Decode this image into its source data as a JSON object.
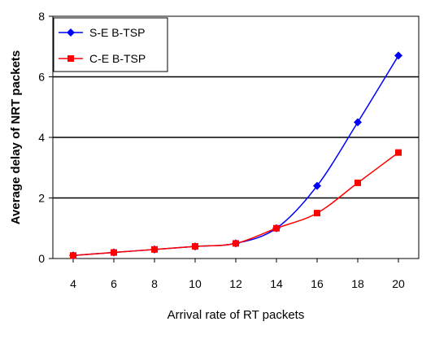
{
  "chart_data": {
    "type": "line",
    "x": [
      4,
      6,
      8,
      10,
      12,
      14,
      16,
      18,
      20
    ],
    "xlabel": "Arrival rate of RT packets",
    "ylabel": "Average delay of NRT packets",
    "xlim": [
      3,
      21
    ],
    "ylim": [
      0,
      8
    ],
    "yticks": [
      0,
      2,
      4,
      6,
      8
    ],
    "grid": "horizontal",
    "legend_position": "top-left",
    "series": [
      {
        "name": "S-E B-TSP",
        "color": "#0000ff",
        "marker": "diamond",
        "x": [
          4,
          6,
          8,
          10,
          12,
          14,
          16,
          18,
          20
        ],
        "values": [
          0.1,
          0.2,
          0.3,
          0.4,
          0.5,
          1.0,
          2.4,
          4.5,
          6.7
        ]
      },
      {
        "name": "C-E B-TSP",
        "color": "#ff0000",
        "marker": "square",
        "x": [
          4,
          6,
          8,
          10,
          12,
          14,
          16,
          18,
          20
        ],
        "values": [
          0.1,
          0.2,
          0.3,
          0.4,
          0.5,
          1.0,
          1.5,
          2.5,
          3.5
        ]
      }
    ]
  }
}
